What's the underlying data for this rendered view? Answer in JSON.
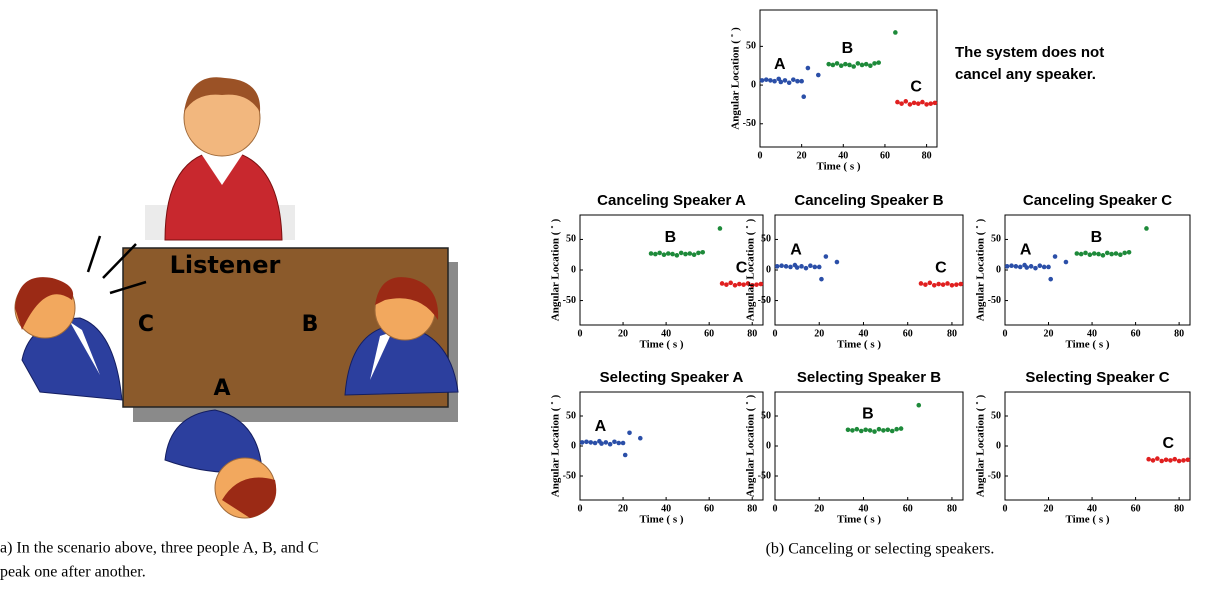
{
  "illustration": {
    "listener": "Listener",
    "a": "A",
    "b": "B",
    "c": "C"
  },
  "captions": {
    "a": [
      "a) In the scenario above, three people A, B, and C",
      "peak one after another."
    ],
    "b": "(b) Canceling or selecting speakers."
  },
  "chart_data": [
    {
      "type": "scatter",
      "note": [
        "The system does not",
        "cancel  any speaker."
      ],
      "xlabel": "Time ( s )",
      "ylabel": "Angular Location ( ˚ )",
      "xlim": [
        0,
        85
      ],
      "ylim": [
        -80,
        97
      ],
      "xticks": [
        0,
        20,
        40,
        60,
        80
      ],
      "yticks": [
        -50,
        0,
        50
      ],
      "series": [
        {
          "name": "A",
          "color": "#2b4fa8",
          "x": [
            1,
            3,
            5,
            7,
            9,
            10,
            12,
            14,
            16,
            18,
            20,
            21,
            23,
            28
          ],
          "y": [
            6,
            7,
            6,
            5,
            8,
            4,
            6,
            3,
            7,
            5,
            5,
            -15,
            22,
            13
          ]
        },
        {
          "name": "B",
          "color": "#1e8a3a",
          "x": [
            33,
            35,
            37,
            39,
            41,
            43,
            45,
            47,
            49,
            51,
            53,
            55,
            57,
            65
          ],
          "y": [
            27,
            26,
            28,
            25,
            27,
            26,
            24,
            28,
            26,
            27,
            25,
            28,
            29,
            68
          ]
        },
        {
          "name": "C",
          "color": "#e02020",
          "x": [
            66,
            68,
            70,
            72,
            74,
            76,
            78,
            80,
            82,
            84
          ],
          "y": [
            -22,
            -24,
            -21,
            -25,
            -23,
            -24,
            -22,
            -25,
            -24,
            -23
          ]
        }
      ]
    },
    {
      "type": "scatter",
      "title": "Canceling Speaker A",
      "xlabel": "Time ( s )",
      "ylabel": "Angular Location ( ˚ )",
      "xlim": [
        0,
        85
      ],
      "ylim": [
        -90,
        90
      ],
      "xticks": [
        0,
        20,
        40,
        60,
        80
      ],
      "yticks": [
        -50,
        0,
        50
      ],
      "series": [
        {
          "name": "B",
          "color": "#1e8a3a",
          "x": [
            33,
            35,
            37,
            39,
            41,
            43,
            45,
            47,
            49,
            51,
            53,
            55,
            57,
            65
          ],
          "y": [
            27,
            26,
            28,
            25,
            27,
            26,
            24,
            28,
            26,
            27,
            25,
            28,
            29,
            68
          ]
        },
        {
          "name": "C",
          "color": "#e02020",
          "x": [
            66,
            68,
            70,
            72,
            74,
            76,
            78,
            80,
            82,
            84
          ],
          "y": [
            -22,
            -24,
            -21,
            -25,
            -23,
            -24,
            -22,
            -25,
            -24,
            -23
          ]
        }
      ]
    },
    {
      "type": "scatter",
      "title": "Canceling Speaker B",
      "xlabel": "Time ( s )",
      "ylabel": "Angular Location ( ˚ )",
      "xlim": [
        0,
        85
      ],
      "ylim": [
        -90,
        90
      ],
      "xticks": [
        0,
        20,
        40,
        60,
        80
      ],
      "yticks": [
        -50,
        0,
        50
      ],
      "series": [
        {
          "name": "A",
          "color": "#2b4fa8",
          "x": [
            1,
            3,
            5,
            7,
            9,
            10,
            12,
            14,
            16,
            18,
            20,
            21,
            23,
            28
          ],
          "y": [
            6,
            7,
            6,
            5,
            8,
            4,
            6,
            3,
            7,
            5,
            5,
            -15,
            22,
            13
          ]
        },
        {
          "name": "C",
          "color": "#e02020",
          "x": [
            66,
            68,
            70,
            72,
            74,
            76,
            78,
            80,
            82,
            84
          ],
          "y": [
            -22,
            -24,
            -21,
            -25,
            -23,
            -24,
            -22,
            -25,
            -24,
            -23
          ]
        }
      ]
    },
    {
      "type": "scatter",
      "title": "Canceling Speaker C",
      "xlabel": "Time ( s )",
      "ylabel": "Angular Location ( ˚ )",
      "xlim": [
        0,
        85
      ],
      "ylim": [
        -90,
        90
      ],
      "xticks": [
        0,
        20,
        40,
        60,
        80
      ],
      "yticks": [
        -50,
        0,
        50
      ],
      "series": [
        {
          "name": "A",
          "color": "#2b4fa8",
          "x": [
            1,
            3,
            5,
            7,
            9,
            10,
            12,
            14,
            16,
            18,
            20,
            21,
            23,
            28
          ],
          "y": [
            6,
            7,
            6,
            5,
            8,
            4,
            6,
            3,
            7,
            5,
            5,
            -15,
            22,
            13
          ]
        },
        {
          "name": "B",
          "color": "#1e8a3a",
          "x": [
            33,
            35,
            37,
            39,
            41,
            43,
            45,
            47,
            49,
            51,
            53,
            55,
            57,
            65
          ],
          "y": [
            27,
            26,
            28,
            25,
            27,
            26,
            24,
            28,
            26,
            27,
            25,
            28,
            29,
            68
          ]
        }
      ]
    },
    {
      "type": "scatter",
      "title": "Selecting Speaker A",
      "xlabel": "Time ( s )",
      "ylabel": "Angular Location ( ˚ )",
      "xlim": [
        0,
        85
      ],
      "ylim": [
        -90,
        90
      ],
      "xticks": [
        0,
        20,
        40,
        60,
        80
      ],
      "yticks": [
        -50,
        0,
        50
      ],
      "series": [
        {
          "name": "A",
          "color": "#2b4fa8",
          "x": [
            1,
            3,
            5,
            7,
            9,
            10,
            12,
            14,
            16,
            18,
            20,
            21,
            23,
            28
          ],
          "y": [
            6,
            7,
            6,
            5,
            8,
            4,
            6,
            3,
            7,
            5,
            5,
            -15,
            22,
            13
          ]
        }
      ]
    },
    {
      "type": "scatter",
      "title": "Selecting Speaker B",
      "xlabel": "Time ( s )",
      "ylabel": "Angular Location ( ˚ )",
      "xlim": [
        0,
        85
      ],
      "ylim": [
        -90,
        90
      ],
      "xticks": [
        0,
        20,
        40,
        60,
        80
      ],
      "yticks": [
        -50,
        0,
        50
      ],
      "series": [
        {
          "name": "B",
          "color": "#1e8a3a",
          "x": [
            33,
            35,
            37,
            39,
            41,
            43,
            45,
            47,
            49,
            51,
            53,
            55,
            57,
            65
          ],
          "y": [
            27,
            26,
            28,
            25,
            27,
            26,
            24,
            28,
            26,
            27,
            25,
            28,
            29,
            68
          ]
        }
      ]
    },
    {
      "type": "scatter",
      "title": "Selecting Speaker C",
      "xlabel": "Time ( s )",
      "ylabel": "Angular Location ( ˚ )",
      "xlim": [
        0,
        85
      ],
      "ylim": [
        -90,
        90
      ],
      "xticks": [
        0,
        20,
        40,
        60,
        80
      ],
      "yticks": [
        -50,
        0,
        50
      ],
      "series": [
        {
          "name": "C",
          "color": "#e02020",
          "x": [
            66,
            68,
            70,
            72,
            74,
            76,
            78,
            80,
            82,
            84
          ],
          "y": [
            -22,
            -24,
            -21,
            -25,
            -23,
            -24,
            -22,
            -25,
            -24,
            -23
          ]
        }
      ]
    }
  ]
}
